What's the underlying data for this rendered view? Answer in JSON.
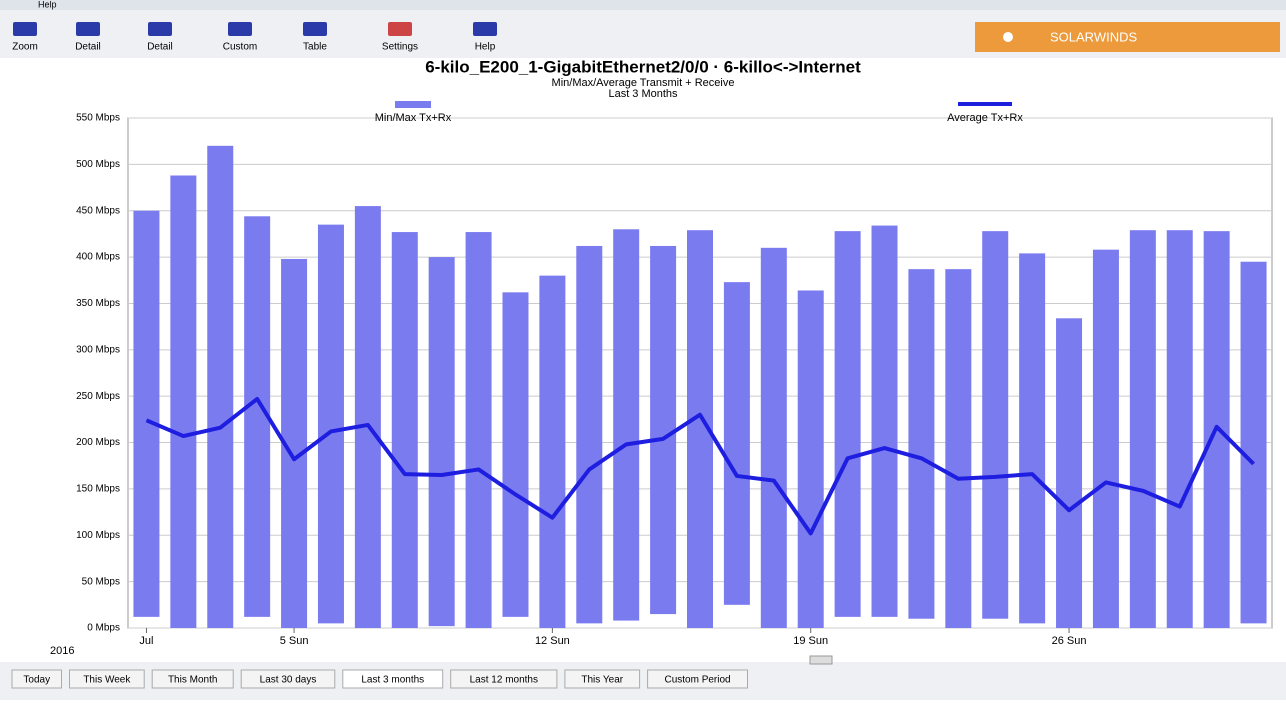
{
  "menu": [
    "Help"
  ],
  "toolbar": [
    "Zoom",
    "Detail",
    "Detail",
    "Custom",
    "Table",
    "Settings",
    "Help"
  ],
  "brand": "SOLARWINDS",
  "chart_data": {
    "type": "range-bar-line",
    "title": "6-kilo_E200_1-GigabitEthernet2/0/0 · 6-killo<->Internet",
    "subtitle": "Min/Max/Average Transmit + Receive",
    "period": "Last 3 Months",
    "year_label": "2016",
    "categories": [
      "Jul",
      null,
      null,
      null,
      "5 Sun",
      null,
      null,
      null,
      null,
      null,
      null,
      "12 Sun",
      null,
      null,
      null,
      null,
      null,
      null,
      "19 Sun",
      null,
      null,
      null,
      null,
      null,
      null,
      "26 Sun",
      null,
      null,
      null,
      null,
      null
    ],
    "series": [
      {
        "name": "Min/Max Tx+Rx",
        "color": "#7b7bf0",
        "values": [
          [
            12,
            450
          ],
          [
            0,
            488
          ],
          [
            0,
            520
          ],
          [
            12,
            444
          ],
          [
            0,
            398
          ],
          [
            5,
            435
          ],
          [
            0,
            455
          ],
          [
            0,
            427
          ],
          [
            2,
            400
          ],
          [
            0,
            427
          ],
          [
            12,
            362
          ],
          [
            0,
            380
          ],
          [
            5,
            412
          ],
          [
            8,
            430
          ],
          [
            15,
            412
          ],
          [
            0,
            429
          ],
          [
            25,
            373
          ],
          [
            0,
            410
          ],
          [
            0,
            364
          ],
          [
            12,
            428
          ],
          [
            12,
            434
          ],
          [
            10,
            387
          ],
          [
            0,
            387
          ],
          [
            10,
            428
          ],
          [
            5,
            404
          ],
          [
            0,
            334
          ],
          [
            0,
            408
          ],
          [
            0,
            429
          ],
          [
            0,
            429
          ],
          [
            0,
            428
          ],
          [
            5,
            395
          ]
        ]
      },
      {
        "name": "Average Tx+Rx",
        "color": "#1e1ee0",
        "values": [
          224,
          207,
          216,
          247,
          182,
          212,
          219,
          166,
          165,
          171,
          144,
          119,
          171,
          198,
          204,
          230,
          164,
          159,
          102,
          183,
          194,
          183,
          161,
          163,
          166,
          127,
          157,
          148,
          131,
          217,
          177
        ]
      }
    ],
    "ylim": [
      0,
      550
    ],
    "yticks": [
      {
        "value": 0,
        "label": "0 Mbps"
      },
      {
        "value": 50,
        "label": "50 Mbps"
      },
      {
        "value": 100,
        "label": "100 Mbps"
      },
      {
        "value": 150,
        "label": "150 Mbps"
      },
      {
        "value": 200,
        "label": "200 Mbps"
      },
      {
        "value": 250,
        "label": "250 Mbps"
      },
      {
        "value": 300,
        "label": "300 Mbps"
      },
      {
        "value": 350,
        "label": "350 Mbps"
      },
      {
        "value": 400,
        "label": "400 Mbps"
      },
      {
        "value": 450,
        "label": "450 Mbps"
      },
      {
        "value": 500,
        "label": "500 Mbps"
      },
      {
        "value": 550,
        "label": "550 Mbps"
      }
    ],
    "grid": true
  },
  "periods": [
    "Today",
    "This Week",
    "This Month",
    "Last 30 days",
    "Last 3 months",
    "Last 12 months",
    "This Year",
    "Custom Period"
  ]
}
